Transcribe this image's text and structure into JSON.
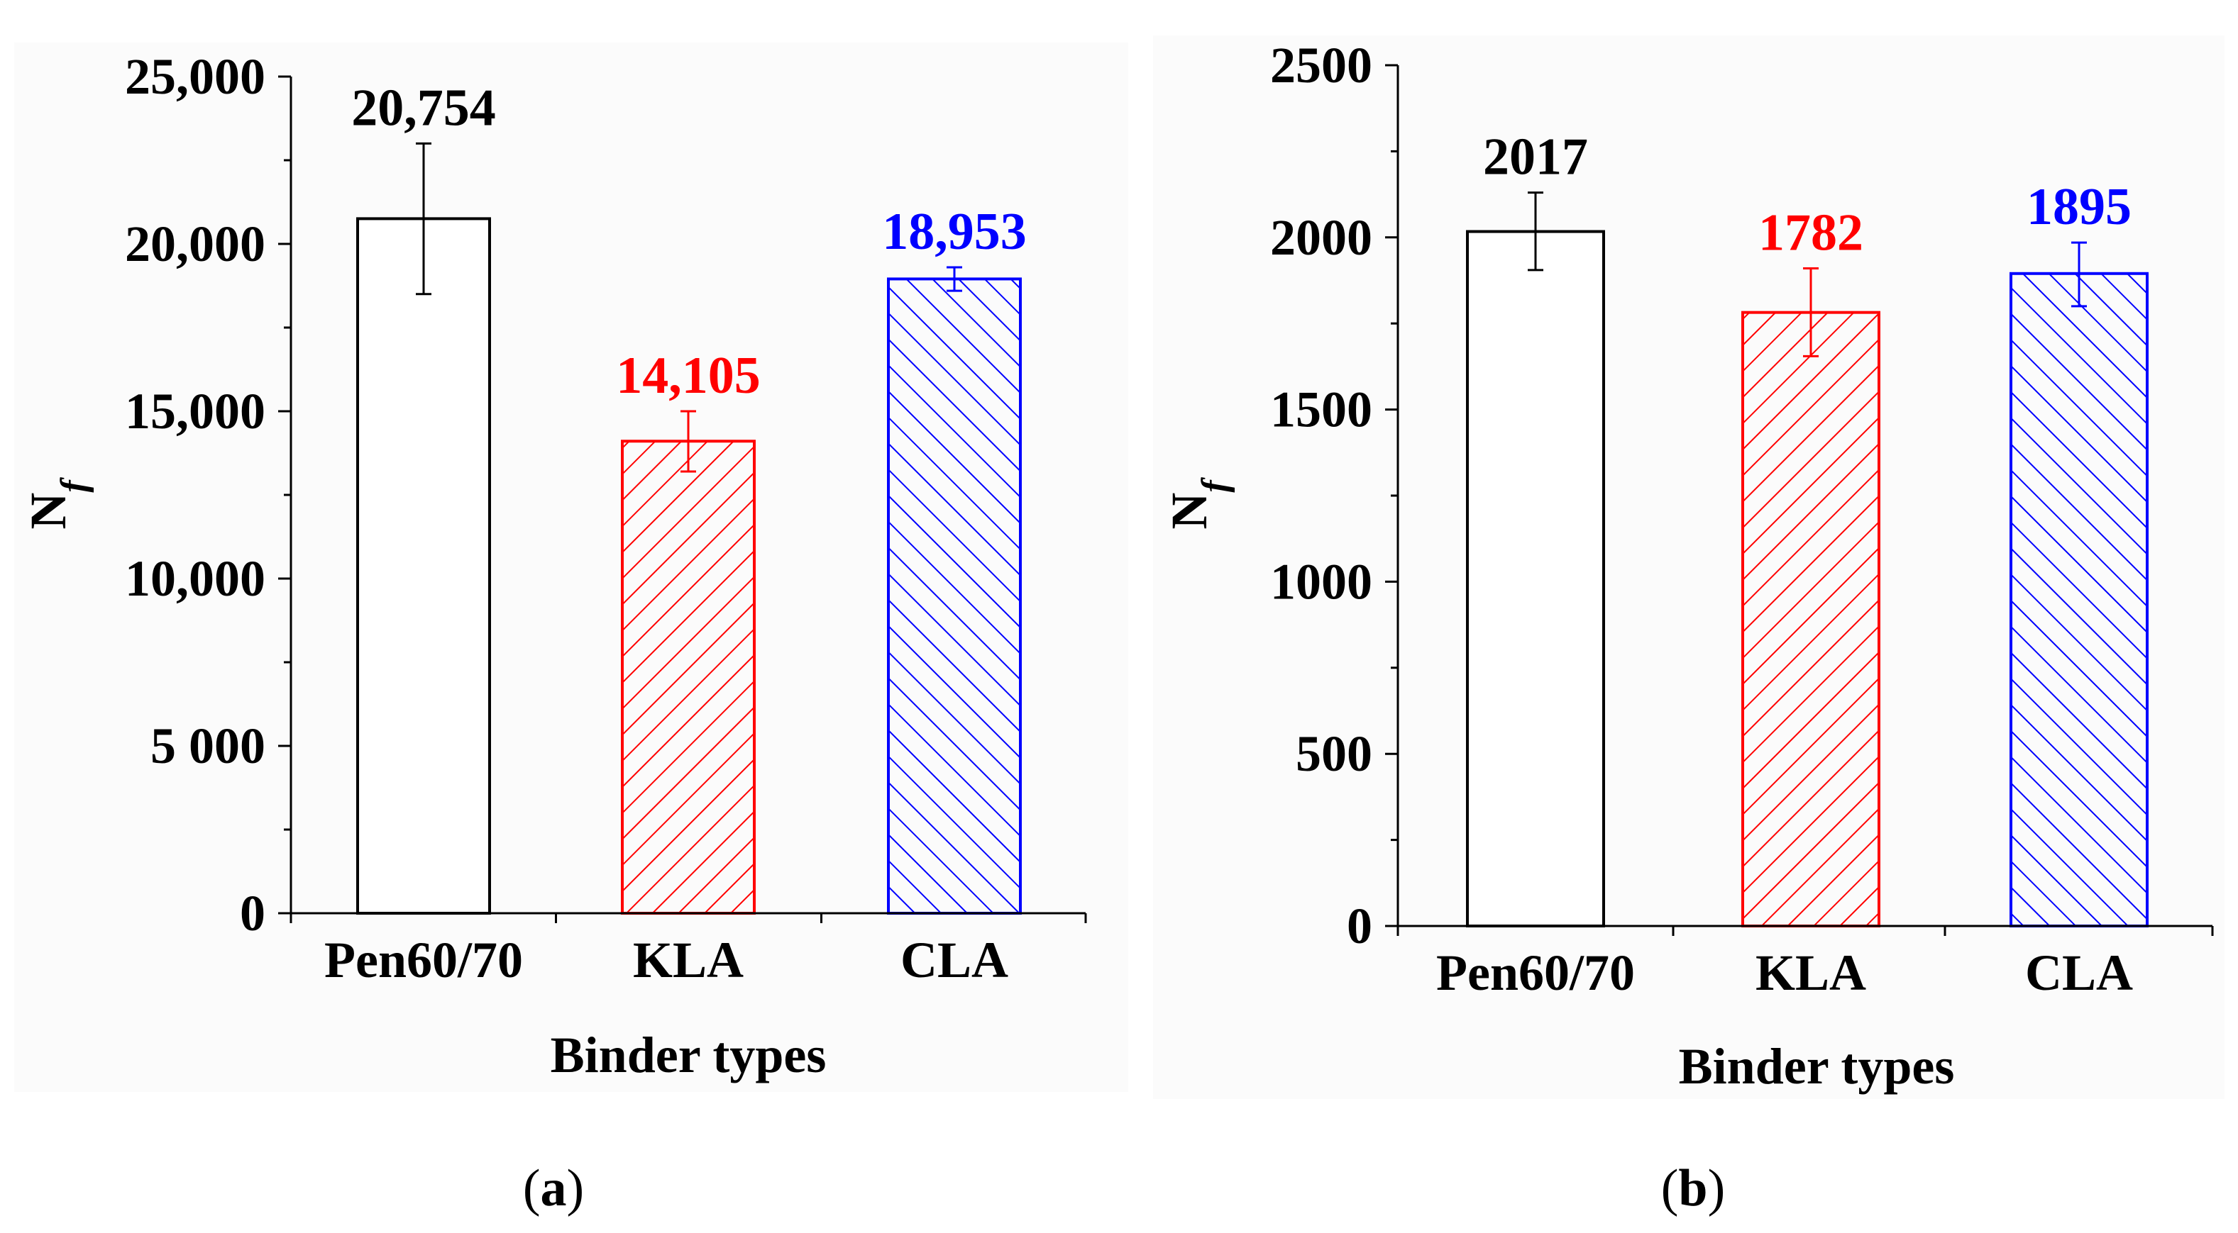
{
  "chart_data": [
    {
      "type": "bar",
      "panel": "(a)",
      "panel_letter": "a",
      "title": "",
      "xlabel": "Binder types",
      "ylabel": "N",
      "ylabel_sub": "f",
      "ylim": [
        0,
        25000
      ],
      "yticks": [
        0,
        5000,
        10000,
        15000,
        20000,
        25000
      ],
      "ytick_labels": [
        "0",
        "5 000",
        "10,000",
        "15,000",
        "20,000",
        "25,000"
      ],
      "categories": [
        "Pen60/70",
        "KLA",
        "CLA"
      ],
      "values": [
        20754,
        14105,
        18953
      ],
      "value_labels": [
        "20,754",
        "14,105",
        "18,953"
      ],
      "errors": [
        [
          18500,
          23000
        ],
        [
          13200,
          15000
        ],
        [
          18600,
          19300
        ]
      ],
      "colors": [
        "#000000",
        "#ff0000",
        "#0000ff"
      ],
      "hatch": [
        "none",
        "forward",
        "backward"
      ]
    },
    {
      "type": "bar",
      "panel": "(b)",
      "panel_letter": "b",
      "title": "",
      "xlabel": "Binder types",
      "ylabel": "N",
      "ylabel_sub": "f",
      "ylim": [
        0,
        2500
      ],
      "yticks": [
        0,
        500,
        1000,
        1500,
        2000,
        2500
      ],
      "ytick_labels": [
        "0",
        "500",
        "1000",
        "1500",
        "2000",
        "2500"
      ],
      "categories": [
        "Pen60/70",
        "KLA",
        "CLA"
      ],
      "values": [
        2017,
        1782,
        1895
      ],
      "value_labels": [
        "2017",
        "1782",
        "1895"
      ],
      "errors": [
        [
          1905,
          2130
        ],
        [
          1655,
          1910
        ],
        [
          1800,
          1985
        ]
      ],
      "colors": [
        "#000000",
        "#ff0000",
        "#0000ff"
      ],
      "hatch": [
        "none",
        "forward",
        "backward"
      ]
    }
  ]
}
